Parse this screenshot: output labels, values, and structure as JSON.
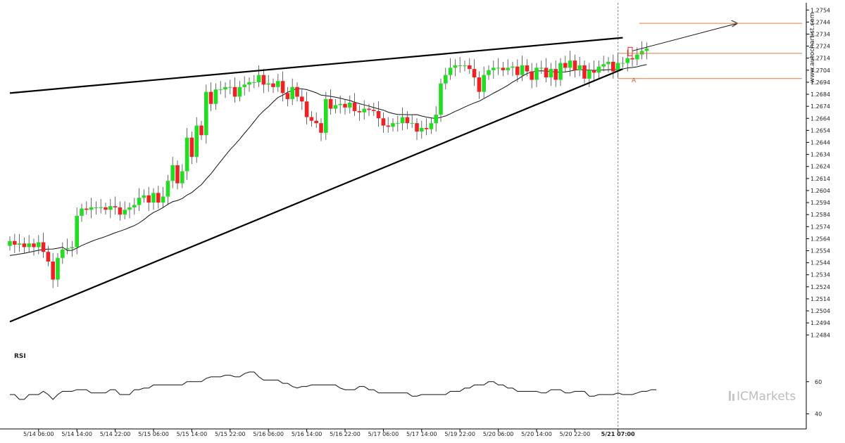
{
  "watermark": "www.autochartist.com",
  "brand": "ICMarkets",
  "rsi_label": "RSI",
  "pattern_point_label": "A",
  "colors": {
    "bull": "#22dd22",
    "bear": "#ee2222",
    "wick": "#444444",
    "trend": "#000000",
    "ma": "#111111",
    "orange": "#e07a3a",
    "cursor": "#888888"
  },
  "chart_data": {
    "type": "candlestick",
    "price_axis": {
      "ylim": [
        1.2476,
        1.276
      ],
      "ticks": [
        "1.2754",
        "1.2744",
        "1.2734",
        "1.2724",
        "1.2714",
        "1.2704",
        "1.2694",
        "1.2684",
        "1.2674",
        "1.2664",
        "1.2654",
        "1.2644",
        "1.2634",
        "1.2624",
        "1.2614",
        "1.2604",
        "1.2594",
        "1.2584",
        "1.2574",
        "1.2564",
        "1.2554",
        "1.2544",
        "1.2534",
        "1.2524",
        "1.2514",
        "1.2504",
        "1.2494",
        "1.2484"
      ]
    },
    "time_axis": {
      "labels": [
        {
          "text": "5/14 06:00",
          "i": 6
        },
        {
          "text": "5/14 14:00",
          "i": 14
        },
        {
          "text": "5/14 22:00",
          "i": 22
        },
        {
          "text": "5/15 06:00",
          "i": 30
        },
        {
          "text": "5/15 14:00",
          "i": 38
        },
        {
          "text": "5/15 22:00",
          "i": 46
        },
        {
          "text": "5/16 06:00",
          "i": 54
        },
        {
          "text": "5/16 14:00",
          "i": 62
        },
        {
          "text": "5/16 22:00",
          "i": 70
        },
        {
          "text": "5/17 06:00",
          "i": 78
        },
        {
          "text": "5/17 14:00",
          "i": 86
        },
        {
          "text": "5/19 22:00",
          "i": 94
        },
        {
          "text": "5/20 06:00",
          "i": 102
        },
        {
          "text": "5/20 14:00",
          "i": 110
        },
        {
          "text": "5/20 22:00",
          "i": 118
        },
        {
          "text": "5/21 07:00",
          "i": 127,
          "bold": true
        }
      ]
    },
    "candles_close": [
      1.2562,
      1.2559,
      1.256,
      1.2557,
      1.256,
      1.2557,
      1.2561,
      1.2553,
      1.2545,
      1.253,
      1.2548,
      1.2555,
      1.2556,
      1.2557,
      1.2583,
      1.2589,
      1.2588,
      1.259,
      1.259,
      1.259,
      1.2588,
      1.2591,
      1.259,
      1.2584,
      1.2588,
      1.259,
      1.2592,
      1.2598,
      1.26,
      1.2594,
      1.2602,
      1.2594,
      1.2599,
      1.2612,
      1.2625,
      1.261,
      1.262,
      1.2648,
      1.2632,
      1.2658,
      1.265,
      1.2686,
      1.2676,
      1.2688,
      1.2688,
      1.269,
      1.269,
      1.2682,
      1.269,
      1.2692,
      1.2694,
      1.2694,
      1.27,
      1.2692,
      1.2693,
      1.269,
      1.2695,
      1.2685,
      1.268,
      1.269,
      1.2682,
      1.2678,
      1.2665,
      1.2662,
      1.266,
      1.2652,
      1.268,
      1.2672,
      1.2675,
      1.2676,
      1.2673,
      1.2677,
      1.267,
      1.2669,
      1.2672,
      1.2671,
      1.267,
      1.2664,
      1.2658,
      1.2657,
      1.266,
      1.266,
      1.2665,
      1.266,
      1.266,
      1.2653,
      1.2656,
      1.2655,
      1.266,
      1.2667,
      1.2693,
      1.27,
      1.2706,
      1.2708,
      1.2708,
      1.2708,
      1.2705,
      1.2698,
      1.2686,
      1.27,
      1.2704,
      1.2706,
      1.2706,
      1.2704,
      1.2706,
      1.2707,
      1.27,
      1.2708,
      1.2703,
      1.2696,
      1.2706,
      1.2706,
      1.2698,
      1.2705,
      1.2696,
      1.271,
      1.2706,
      1.2712,
      1.2704,
      1.2708,
      1.2697,
      1.2704,
      1.2702,
      1.2707,
      1.2709,
      1.2711,
      1.2703,
      1.271,
      1.271,
      1.2714,
      1.2713,
      1.2717,
      1.272,
      1.2722
    ],
    "moving_average": {
      "start": 1.2545,
      "end": 1.2705
    },
    "support_line": {
      "from": [
        0,
        1.2495
      ],
      "to": [
        128,
        1.2705
      ]
    },
    "resistance_line": {
      "from": [
        0,
        1.2685
      ],
      "to": [
        128,
        1.2731
      ]
    },
    "projection": {
      "from": [
        130,
        1.272
      ],
      "to": [
        152,
        1.2743
      ],
      "target_level": 1.2743
    },
    "levels": [
      1.2743,
      1.2718,
      1.2697
    ],
    "rsi": {
      "ticks": [
        "60",
        "40"
      ],
      "ylim": [
        35,
        80
      ],
      "values": [
        52,
        52,
        49,
        49,
        52,
        52,
        52,
        54,
        52,
        49,
        52,
        54,
        54,
        54,
        55,
        55,
        55,
        53,
        53,
        53,
        53,
        55,
        55,
        52,
        52,
        52,
        55,
        55,
        56,
        56,
        58,
        58,
        58,
        58,
        58,
        58,
        58,
        60,
        60,
        60,
        60,
        62,
        63,
        63,
        63,
        64,
        64,
        63,
        63,
        65,
        66,
        66,
        63,
        61,
        61,
        61,
        61,
        59,
        59,
        57,
        56,
        57,
        57,
        58,
        58,
        58,
        58,
        58,
        58,
        56,
        55,
        55,
        55,
        57,
        57,
        55,
        55,
        53,
        53,
        53,
        53,
        53,
        53,
        53,
        51,
        51,
        52,
        52,
        52,
        52,
        52,
        52,
        54,
        54,
        54,
        56,
        56,
        58,
        58,
        58,
        60,
        60,
        58,
        58,
        56,
        56,
        54,
        54,
        54,
        54,
        54,
        53,
        53,
        55,
        55,
        55,
        53,
        53,
        54,
        54,
        54,
        51,
        51,
        52,
        52,
        52,
        52,
        53,
        52,
        52,
        52,
        53,
        54,
        54,
        55,
        55
      ]
    }
  }
}
